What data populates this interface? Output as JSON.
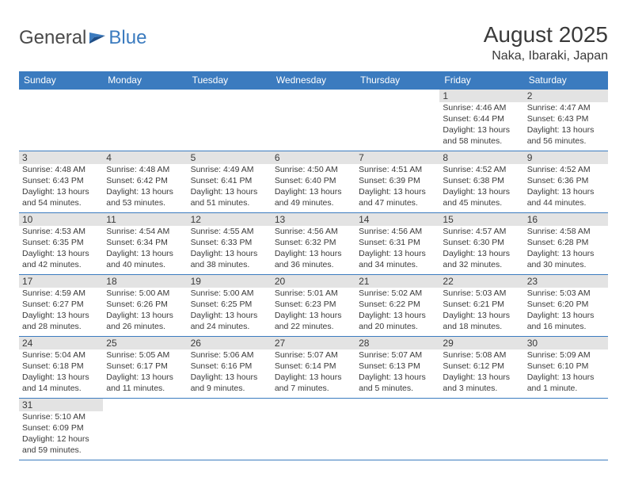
{
  "logo": {
    "general": "General",
    "blue": "Blue"
  },
  "title": "August 2025",
  "location": "Naka, Ibaraki, Japan",
  "colors": {
    "header_bg": "#3b7bbf",
    "header_text": "#ffffff",
    "daynum_bg": "#e3e3e3",
    "border": "#3b7bbf",
    "text": "#3a3a3a",
    "logo_gray": "#4a4a4a",
    "logo_blue": "#3b7bbf",
    "background": "#ffffff"
  },
  "weekdays": [
    "Sunday",
    "Monday",
    "Tuesday",
    "Wednesday",
    "Thursday",
    "Friday",
    "Saturday"
  ],
  "weeks": [
    [
      null,
      null,
      null,
      null,
      null,
      {
        "n": "1",
        "sr": "Sunrise: 4:46 AM",
        "ss": "Sunset: 6:44 PM",
        "d1": "Daylight: 13 hours",
        "d2": "and 58 minutes."
      },
      {
        "n": "2",
        "sr": "Sunrise: 4:47 AM",
        "ss": "Sunset: 6:43 PM",
        "d1": "Daylight: 13 hours",
        "d2": "and 56 minutes."
      }
    ],
    [
      {
        "n": "3",
        "sr": "Sunrise: 4:48 AM",
        "ss": "Sunset: 6:43 PM",
        "d1": "Daylight: 13 hours",
        "d2": "and 54 minutes."
      },
      {
        "n": "4",
        "sr": "Sunrise: 4:48 AM",
        "ss": "Sunset: 6:42 PM",
        "d1": "Daylight: 13 hours",
        "d2": "and 53 minutes."
      },
      {
        "n": "5",
        "sr": "Sunrise: 4:49 AM",
        "ss": "Sunset: 6:41 PM",
        "d1": "Daylight: 13 hours",
        "d2": "and 51 minutes."
      },
      {
        "n": "6",
        "sr": "Sunrise: 4:50 AM",
        "ss": "Sunset: 6:40 PM",
        "d1": "Daylight: 13 hours",
        "d2": "and 49 minutes."
      },
      {
        "n": "7",
        "sr": "Sunrise: 4:51 AM",
        "ss": "Sunset: 6:39 PM",
        "d1": "Daylight: 13 hours",
        "d2": "and 47 minutes."
      },
      {
        "n": "8",
        "sr": "Sunrise: 4:52 AM",
        "ss": "Sunset: 6:38 PM",
        "d1": "Daylight: 13 hours",
        "d2": "and 45 minutes."
      },
      {
        "n": "9",
        "sr": "Sunrise: 4:52 AM",
        "ss": "Sunset: 6:36 PM",
        "d1": "Daylight: 13 hours",
        "d2": "and 44 minutes."
      }
    ],
    [
      {
        "n": "10",
        "sr": "Sunrise: 4:53 AM",
        "ss": "Sunset: 6:35 PM",
        "d1": "Daylight: 13 hours",
        "d2": "and 42 minutes."
      },
      {
        "n": "11",
        "sr": "Sunrise: 4:54 AM",
        "ss": "Sunset: 6:34 PM",
        "d1": "Daylight: 13 hours",
        "d2": "and 40 minutes."
      },
      {
        "n": "12",
        "sr": "Sunrise: 4:55 AM",
        "ss": "Sunset: 6:33 PM",
        "d1": "Daylight: 13 hours",
        "d2": "and 38 minutes."
      },
      {
        "n": "13",
        "sr": "Sunrise: 4:56 AM",
        "ss": "Sunset: 6:32 PM",
        "d1": "Daylight: 13 hours",
        "d2": "and 36 minutes."
      },
      {
        "n": "14",
        "sr": "Sunrise: 4:56 AM",
        "ss": "Sunset: 6:31 PM",
        "d1": "Daylight: 13 hours",
        "d2": "and 34 minutes."
      },
      {
        "n": "15",
        "sr": "Sunrise: 4:57 AM",
        "ss": "Sunset: 6:30 PM",
        "d1": "Daylight: 13 hours",
        "d2": "and 32 minutes."
      },
      {
        "n": "16",
        "sr": "Sunrise: 4:58 AM",
        "ss": "Sunset: 6:28 PM",
        "d1": "Daylight: 13 hours",
        "d2": "and 30 minutes."
      }
    ],
    [
      {
        "n": "17",
        "sr": "Sunrise: 4:59 AM",
        "ss": "Sunset: 6:27 PM",
        "d1": "Daylight: 13 hours",
        "d2": "and 28 minutes."
      },
      {
        "n": "18",
        "sr": "Sunrise: 5:00 AM",
        "ss": "Sunset: 6:26 PM",
        "d1": "Daylight: 13 hours",
        "d2": "and 26 minutes."
      },
      {
        "n": "19",
        "sr": "Sunrise: 5:00 AM",
        "ss": "Sunset: 6:25 PM",
        "d1": "Daylight: 13 hours",
        "d2": "and 24 minutes."
      },
      {
        "n": "20",
        "sr": "Sunrise: 5:01 AM",
        "ss": "Sunset: 6:23 PM",
        "d1": "Daylight: 13 hours",
        "d2": "and 22 minutes."
      },
      {
        "n": "21",
        "sr": "Sunrise: 5:02 AM",
        "ss": "Sunset: 6:22 PM",
        "d1": "Daylight: 13 hours",
        "d2": "and 20 minutes."
      },
      {
        "n": "22",
        "sr": "Sunrise: 5:03 AM",
        "ss": "Sunset: 6:21 PM",
        "d1": "Daylight: 13 hours",
        "d2": "and 18 minutes."
      },
      {
        "n": "23",
        "sr": "Sunrise: 5:03 AM",
        "ss": "Sunset: 6:20 PM",
        "d1": "Daylight: 13 hours",
        "d2": "and 16 minutes."
      }
    ],
    [
      {
        "n": "24",
        "sr": "Sunrise: 5:04 AM",
        "ss": "Sunset: 6:18 PM",
        "d1": "Daylight: 13 hours",
        "d2": "and 14 minutes."
      },
      {
        "n": "25",
        "sr": "Sunrise: 5:05 AM",
        "ss": "Sunset: 6:17 PM",
        "d1": "Daylight: 13 hours",
        "d2": "and 11 minutes."
      },
      {
        "n": "26",
        "sr": "Sunrise: 5:06 AM",
        "ss": "Sunset: 6:16 PM",
        "d1": "Daylight: 13 hours",
        "d2": "and 9 minutes."
      },
      {
        "n": "27",
        "sr": "Sunrise: 5:07 AM",
        "ss": "Sunset: 6:14 PM",
        "d1": "Daylight: 13 hours",
        "d2": "and 7 minutes."
      },
      {
        "n": "28",
        "sr": "Sunrise: 5:07 AM",
        "ss": "Sunset: 6:13 PM",
        "d1": "Daylight: 13 hours",
        "d2": "and 5 minutes."
      },
      {
        "n": "29",
        "sr": "Sunrise: 5:08 AM",
        "ss": "Sunset: 6:12 PM",
        "d1": "Daylight: 13 hours",
        "d2": "and 3 minutes."
      },
      {
        "n": "30",
        "sr": "Sunrise: 5:09 AM",
        "ss": "Sunset: 6:10 PM",
        "d1": "Daylight: 13 hours",
        "d2": "and 1 minute."
      }
    ],
    [
      {
        "n": "31",
        "sr": "Sunrise: 5:10 AM",
        "ss": "Sunset: 6:09 PM",
        "d1": "Daylight: 12 hours",
        "d2": "and 59 minutes."
      },
      null,
      null,
      null,
      null,
      null,
      null
    ]
  ]
}
